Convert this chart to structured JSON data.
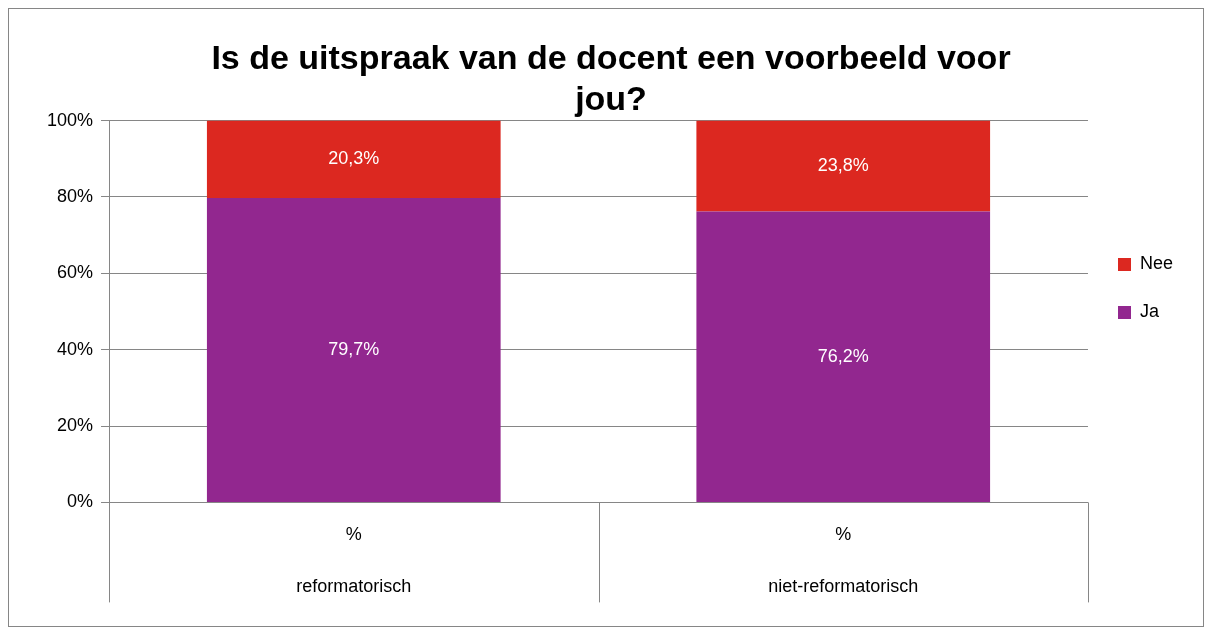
{
  "chart_data": {
    "type": "bar",
    "title": "Is de uitspraak van de docent een voorbeeld voor jou?",
    "categories": [
      "%",
      "%"
    ],
    "series": [
      {
        "name": "Ja",
        "color": "#92278f",
        "values": [
          79.7,
          76.2
        ],
        "value_labels": [
          "79,7%",
          "76,2%"
        ]
      },
      {
        "name": "Nee",
        "color": "#dc2820",
        "values": [
          20.3,
          23.8
        ],
        "value_labels": [
          "20,3%",
          "23,8%"
        ]
      }
    ],
    "stacked": true,
    "ylim": [
      0,
      100
    ],
    "yticks": [
      {
        "value": 0,
        "label": "0%"
      },
      {
        "value": 20,
        "label": "20%"
      },
      {
        "value": 40,
        "label": "40%"
      },
      {
        "value": 60,
        "label": "60%"
      },
      {
        "value": 80,
        "label": "80%"
      },
      {
        "value": 100,
        "label": "100%"
      }
    ],
    "annotations": [
      "reformatorisch",
      "niet-reformatorisch"
    ],
    "grid": "y",
    "legend": "right"
  }
}
